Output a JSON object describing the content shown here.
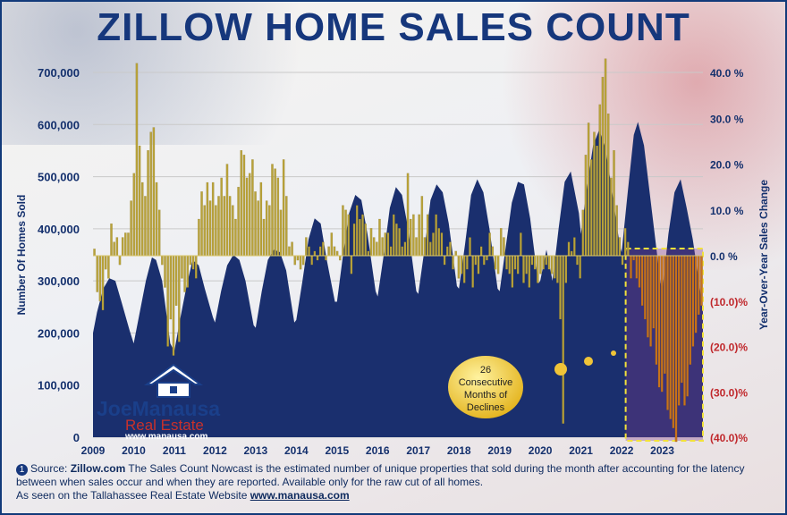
{
  "title": "ZILLOW HOME SALES COUNT",
  "callout_lines": [
    "26",
    "Consecutive",
    "Months of",
    "Declines"
  ],
  "logo": {
    "line1": "JoeManausa",
    "line2": "Real Estate",
    "url": "www.manausa.com"
  },
  "footer": {
    "badge": "1",
    "source_prefix": "Source: ",
    "source_name": "Zillow.com",
    "text": " The Sales Count Nowcast is the estimated number of unique properties that sold during the month after accounting for the latency between when sales occur and when they are reported. Available only for the raw cut of all homes.",
    "seen_prefix": "As seen on the Tallahassee Real Estate Website ",
    "seen_url": "www.manausa.com"
  },
  "colors": {
    "title": "#16377c",
    "area": "#1a2f6e",
    "bar_positive": "#b8a23a",
    "bar_negative": "#c8731a",
    "highlight_border": "#f2e23a",
    "negative_label": "#c0282c"
  },
  "chart_data": {
    "type": "bar",
    "left_axis": {
      "label": "Number Of Homes Sold",
      "ticks": [
        "700,000",
        "600,000",
        "500,000",
        "400,000",
        "300,000",
        "200,000",
        "100,000",
        "0"
      ],
      "range": [
        0,
        700000
      ]
    },
    "right_axis": {
      "label": "Year-Over-Year Sales Change",
      "ticks": [
        "40.0 %",
        "30.0 %",
        "20.0 %",
        "10.0 %",
        "0.0 %",
        "(10.0)%",
        "(20.0)%",
        "(30.0)%",
        "(40.0)%"
      ],
      "range": [
        -40,
        40
      ]
    },
    "x_ticks": [
      "2009",
      "2010",
      "2011",
      "2012",
      "2013",
      "2014",
      "2015",
      "2016",
      "2017",
      "2018",
      "2019",
      "2020",
      "2021",
      "2022",
      "2023"
    ],
    "x_range": [
      2009.0,
      2024.0
    ],
    "grid": true,
    "series": [
      {
        "kind": "area",
        "axis": "left",
        "points": [
          [
            2009.0,
            200000
          ],
          [
            2009.1,
            240000
          ],
          [
            2009.25,
            285000
          ],
          [
            2009.4,
            305000
          ],
          [
            2009.55,
            300000
          ],
          [
            2009.7,
            260000
          ],
          [
            2009.9,
            205000
          ],
          [
            2010.0,
            180000
          ],
          [
            2010.15,
            240000
          ],
          [
            2010.3,
            300000
          ],
          [
            2010.45,
            345000
          ],
          [
            2010.55,
            340000
          ],
          [
            2010.7,
            300000
          ],
          [
            2010.9,
            180000
          ],
          [
            2011.0,
            165000
          ],
          [
            2011.15,
            230000
          ],
          [
            2011.3,
            290000
          ],
          [
            2011.45,
            340000
          ],
          [
            2011.6,
            330000
          ],
          [
            2011.75,
            285000
          ],
          [
            2011.95,
            230000
          ],
          [
            2012.0,
            220000
          ],
          [
            2012.15,
            280000
          ],
          [
            2012.3,
            330000
          ],
          [
            2012.45,
            350000
          ],
          [
            2012.6,
            340000
          ],
          [
            2012.75,
            300000
          ],
          [
            2012.95,
            215000
          ],
          [
            2013.0,
            210000
          ],
          [
            2013.15,
            280000
          ],
          [
            2013.3,
            340000
          ],
          [
            2013.45,
            360000
          ],
          [
            2013.6,
            355000
          ],
          [
            2013.75,
            320000
          ],
          [
            2013.95,
            220000
          ],
          [
            2014.0,
            225000
          ],
          [
            2014.15,
            300000
          ],
          [
            2014.3,
            380000
          ],
          [
            2014.45,
            420000
          ],
          [
            2014.6,
            410000
          ],
          [
            2014.75,
            340000
          ],
          [
            2014.95,
            260000
          ],
          [
            2015.0,
            260000
          ],
          [
            2015.15,
            350000
          ],
          [
            2015.3,
            430000
          ],
          [
            2015.45,
            465000
          ],
          [
            2015.6,
            455000
          ],
          [
            2015.75,
            390000
          ],
          [
            2015.95,
            280000
          ],
          [
            2016.0,
            270000
          ],
          [
            2016.15,
            350000
          ],
          [
            2016.3,
            440000
          ],
          [
            2016.45,
            480000
          ],
          [
            2016.6,
            465000
          ],
          [
            2016.75,
            400000
          ],
          [
            2016.95,
            280000
          ],
          [
            2017.0,
            275000
          ],
          [
            2017.15,
            360000
          ],
          [
            2017.3,
            455000
          ],
          [
            2017.45,
            485000
          ],
          [
            2017.6,
            470000
          ],
          [
            2017.75,
            410000
          ],
          [
            2017.95,
            290000
          ],
          [
            2018.0,
            285000
          ],
          [
            2018.15,
            370000
          ],
          [
            2018.3,
            465000
          ],
          [
            2018.45,
            495000
          ],
          [
            2018.6,
            470000
          ],
          [
            2018.75,
            400000
          ],
          [
            2018.95,
            285000
          ],
          [
            2019.0,
            280000
          ],
          [
            2019.15,
            365000
          ],
          [
            2019.3,
            450000
          ],
          [
            2019.45,
            490000
          ],
          [
            2019.6,
            485000
          ],
          [
            2019.75,
            420000
          ],
          [
            2019.95,
            295000
          ],
          [
            2020.0,
            300000
          ],
          [
            2020.15,
            360000
          ],
          [
            2020.3,
            300000
          ],
          [
            2020.45,
            400000
          ],
          [
            2020.6,
            490000
          ],
          [
            2020.75,
            510000
          ],
          [
            2020.95,
            430000
          ],
          [
            2021.0,
            390000
          ],
          [
            2021.15,
            480000
          ],
          [
            2021.3,
            560000
          ],
          [
            2021.45,
            590000
          ],
          [
            2021.6,
            555000
          ],
          [
            2021.75,
            480000
          ],
          [
            2021.95,
            370000
          ],
          [
            2022.0,
            355000
          ],
          [
            2022.15,
            470000
          ],
          [
            2022.3,
            580000
          ],
          [
            2022.4,
            605000
          ],
          [
            2022.55,
            560000
          ],
          [
            2022.75,
            430000
          ],
          [
            2022.95,
            300000
          ],
          [
            2023.0,
            280000
          ],
          [
            2023.15,
            390000
          ],
          [
            2023.3,
            470000
          ],
          [
            2023.45,
            495000
          ],
          [
            2023.6,
            440000
          ],
          [
            2023.75,
            380000
          ],
          [
            2023.9,
            300000
          ],
          [
            2024.0,
            240000
          ]
        ]
      },
      {
        "kind": "bars",
        "axis": "right",
        "values": [
          1.5,
          -8,
          -10,
          -12,
          -3,
          -5,
          7,
          3,
          4,
          -2,
          4,
          5,
          5,
          12,
          18,
          42,
          24,
          16,
          13,
          23,
          27,
          28,
          16,
          10,
          -2,
          -7,
          -20,
          -14,
          -22,
          -11,
          -19,
          -5,
          -8,
          -7,
          -2,
          -3,
          -5,
          8,
          14,
          11,
          16,
          12,
          16,
          11,
          13,
          17,
          13,
          20,
          13,
          11,
          8,
          15,
          23,
          22,
          17,
          18,
          21,
          14,
          12,
          16,
          8,
          12,
          11,
          20,
          19,
          17,
          10,
          21,
          13,
          2,
          3,
          -2,
          -1,
          -3,
          -2,
          4,
          2,
          -2,
          1,
          -1,
          2,
          3,
          -1,
          2,
          5,
          2,
          1,
          -1,
          11,
          10,
          9,
          -4,
          7,
          11,
          8,
          9,
          7,
          1,
          6,
          4,
          3,
          8,
          4,
          5,
          5,
          2,
          9,
          7,
          6,
          2,
          3,
          18,
          8,
          9,
          4,
          9,
          13,
          4,
          9,
          3,
          5,
          9,
          6,
          5,
          -2,
          2,
          3,
          -3,
          1,
          -5,
          -4,
          -6,
          -3,
          4,
          -7,
          -2,
          -4,
          2,
          -2,
          -1,
          5,
          2,
          -3,
          -4,
          6,
          4,
          -3,
          -4,
          -7,
          -3,
          -4,
          5,
          -6,
          -4,
          -7,
          -2,
          -3,
          -6,
          -4,
          -3,
          -2,
          -3,
          -4,
          -5,
          -6,
          -14,
          -37,
          -6,
          3,
          1,
          4,
          -2,
          -5,
          10,
          22,
          29,
          21,
          27,
          24,
          33,
          39,
          43,
          31,
          17,
          23,
          11,
          4,
          -2,
          6,
          3,
          -5,
          -1,
          -5,
          -7,
          -11,
          -14,
          -18,
          -20,
          -16,
          -24,
          -29,
          -30,
          -26,
          -34,
          -36,
          -38,
          -41,
          -33,
          -28,
          -33,
          -31,
          -24,
          -20,
          -17,
          -13,
          -11
        ]
      }
    ],
    "highlight": {
      "x_from": 2022.1,
      "x_to": 2024.0,
      "label": "26 Consecutive Months of Declines"
    }
  }
}
